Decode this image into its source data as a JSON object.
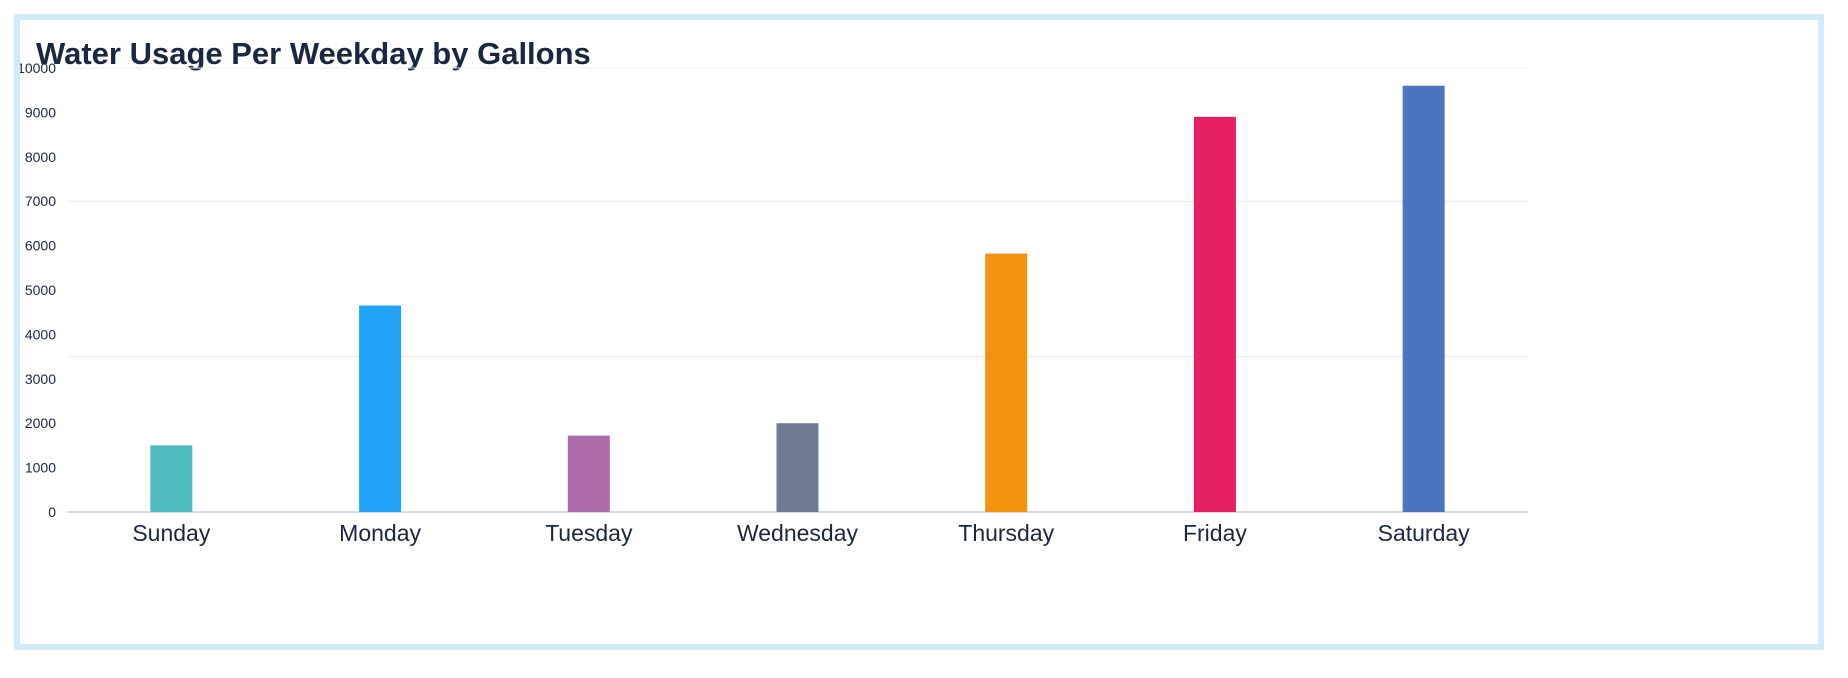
{
  "chart_data": {
    "type": "bar",
    "title": "Water Usage Per Weekday by Gallons",
    "xlabel": "",
    "ylabel": "",
    "categories": [
      "Sunday",
      "Monday",
      "Tuesday",
      "Wednesday",
      "Thursday",
      "Friday",
      "Saturday"
    ],
    "values": [
      1500,
      4650,
      1720,
      2000,
      5820,
      8900,
      9600
    ],
    "colors": [
      "#4dbac0",
      "#23a5f7",
      "#ad6aad",
      "#6f7b94",
      "#f4920f",
      "#e52165",
      "#4c75c1"
    ],
    "ylim": [
      0,
      10000
    ],
    "yticks": [
      "0",
      "1000",
      "2000",
      "3000",
      "4000",
      "5000",
      "6000",
      "7000",
      "8000",
      "9000",
      "10000"
    ],
    "gridlines": [
      0,
      3500,
      7000,
      10000
    ],
    "grid": true,
    "legend": "none"
  }
}
